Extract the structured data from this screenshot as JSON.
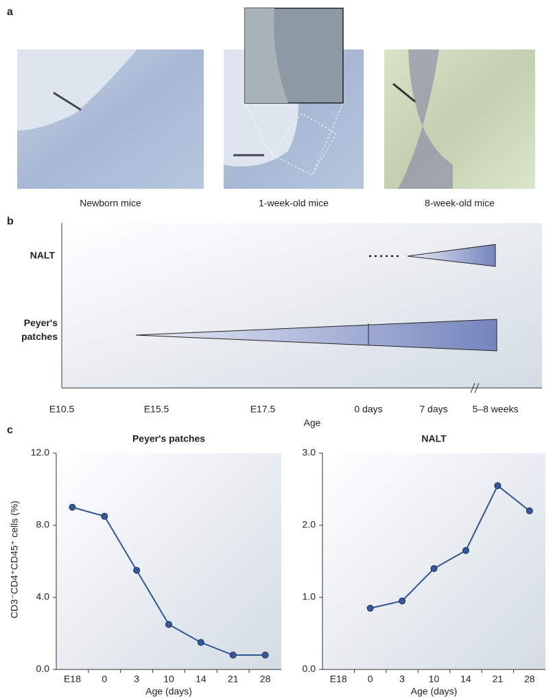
{
  "panel_a": {
    "label": "a",
    "images": [
      {
        "caption": "Newborn mice"
      },
      {
        "caption": "1-week-old mice"
      },
      {
        "caption": "8-week-old mice"
      }
    ]
  },
  "panel_b": {
    "label": "b",
    "rows": [
      "NALT",
      "Peyer's patches"
    ],
    "xticks": [
      "E10.5",
      "E15.5",
      "E17.5",
      "0 days",
      "7 days",
      "5–8 weeks"
    ],
    "xlabel": "Age"
  },
  "panel_c": {
    "label": "c",
    "ylabel": "CD3⁻CD4⁺CD45⁺ cells (%)"
  },
  "chart_data": [
    {
      "type": "line",
      "title": "Peyer's patches",
      "xlabel": "Age (days)",
      "categories": [
        "E18",
        "0",
        "3",
        "10",
        "14",
        "21",
        "28"
      ],
      "series": [
        {
          "name": "Peyer's patches",
          "color": "#2f5597",
          "values": [
            9.0,
            8.5,
            5.5,
            2.5,
            1.5,
            0.8,
            0.8
          ]
        }
      ],
      "ylim": [
        0,
        12
      ],
      "yticks": [
        {
          "value": 0,
          "label": "0.0"
        },
        {
          "value": 4,
          "label": "4.0"
        },
        {
          "value": 8,
          "label": "8.0"
        },
        {
          "value": 12,
          "label": "12.0"
        }
      ]
    },
    {
      "type": "line",
      "title": "NALT",
      "xlabel": "Age (days)",
      "categories": [
        "E18",
        "0",
        "3",
        "10",
        "14",
        "21",
        "28"
      ],
      "series": [
        {
          "name": "NALT",
          "color": "#2f5597",
          "values": [
            null,
            0.85,
            0.95,
            1.4,
            1.65,
            2.55,
            2.2
          ]
        }
      ],
      "ylim": [
        0,
        3
      ],
      "yticks": [
        {
          "value": 0,
          "label": "0.0"
        },
        {
          "value": 1,
          "label": "1.0"
        },
        {
          "value": 2,
          "label": "2.0"
        },
        {
          "value": 3,
          "label": "3.0"
        }
      ]
    }
  ]
}
